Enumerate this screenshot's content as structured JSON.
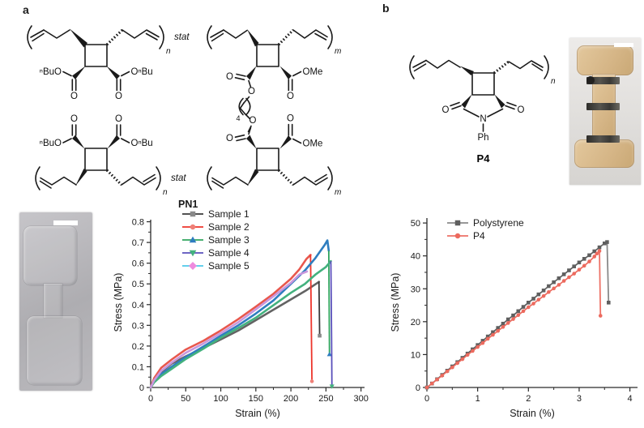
{
  "panels": {
    "a_label": "a",
    "b_label": "b"
  },
  "chemistry": {
    "labels": {
      "nbuo": "ⁿBuO",
      "onbu": "OⁿBu",
      "ome": "OMe",
      "oxygen": "O",
      "nitrogen": "N",
      "phenyl": "Ph",
      "stat": "stat",
      "sub_n": "n",
      "sub_m": "m",
      "linker_repeat": "4",
      "polymer_b_name": "P4"
    }
  },
  "photos": {
    "a": {
      "body_color": "#b4b3b7",
      "scale_bar_color": "#ffffff"
    },
    "b": {
      "specimen_color": "#d5b586",
      "marker_band_color": "#3a3935",
      "scale_bar_color": "#ffffff"
    }
  },
  "chart_data": [
    {
      "type": "line",
      "title": "PN1",
      "xlabel": "Strain (%)",
      "ylabel": "Stress (MPa)",
      "xlim": [
        0,
        305
      ],
      "ylim": [
        0,
        0.81
      ],
      "xticks": [
        "0",
        "50",
        "100",
        "150",
        "200",
        "250",
        "300"
      ],
      "yticks": [
        "0",
        "0.1",
        "0.2",
        "0.3",
        "0.4",
        "0.5",
        "0.6",
        "0.7",
        "0.8"
      ],
      "grid": false,
      "legend_position": "inside-top-left",
      "series": [
        {
          "name": "Sample 1",
          "color": "#636363",
          "line_color": "#3a3a3a",
          "marker": "square",
          "marker_color": "#8a8a8a",
          "curve": [
            [
              0,
              0
            ],
            [
              5,
              0.03
            ],
            [
              15,
              0.075
            ],
            [
              30,
              0.115
            ],
            [
              50,
              0.15
            ],
            [
              75,
              0.19
            ],
            [
              100,
              0.232
            ],
            [
              125,
              0.275
            ],
            [
              150,
              0.325
            ],
            [
              175,
              0.375
            ],
            [
              200,
              0.425
            ],
            [
              220,
              0.465
            ],
            [
              238,
              0.505
            ],
            [
              240,
              0.51
            ]
          ],
          "drop": [
            [
              241,
              0.25
            ]
          ]
        },
        {
          "name": "Sample 2",
          "color": "#e8574d",
          "line_color": "#ed352c",
          "marker": "circle",
          "marker_color": "#ef8077",
          "curve": [
            [
              0,
              0
            ],
            [
              5,
              0.045
            ],
            [
              15,
              0.095
            ],
            [
              30,
              0.135
            ],
            [
              50,
              0.183
            ],
            [
              75,
              0.225
            ],
            [
              100,
              0.275
            ],
            [
              125,
              0.33
            ],
            [
              150,
              0.39
            ],
            [
              175,
              0.452
            ],
            [
              200,
              0.525
            ],
            [
              212,
              0.57
            ],
            [
              222,
              0.62
            ],
            [
              228,
              0.64
            ]
          ],
          "drop": [
            [
              230,
              0.03
            ]
          ]
        },
        {
          "name": "Sample 3",
          "color": "#2e7dbf",
          "line_color": "#2fa45e",
          "marker": "triangle-up",
          "marker_color": "#2e7dbf",
          "curve": [
            [
              0,
              0
            ],
            [
              5,
              0.03
            ],
            [
              15,
              0.065
            ],
            [
              30,
              0.1
            ],
            [
              50,
              0.147
            ],
            [
              75,
              0.197
            ],
            [
              100,
              0.25
            ],
            [
              125,
              0.3
            ],
            [
              150,
              0.357
            ],
            [
              175,
              0.42
            ],
            [
              200,
              0.5
            ],
            [
              220,
              0.565
            ],
            [
              235,
              0.625
            ],
            [
              248,
              0.687
            ],
            [
              252,
              0.71
            ],
            [
              254,
              0.66
            ]
          ],
          "drop": [
            [
              255,
              0.16
            ]
          ]
        },
        {
          "name": "Sample 4",
          "color": "#43b17e",
          "line_color": "#5a50bb",
          "marker": "triangle-down",
          "marker_color": "#43b17e",
          "curve": [
            [
              0,
              0
            ],
            [
              5,
              0.025
            ],
            [
              15,
              0.055
            ],
            [
              30,
              0.09
            ],
            [
              50,
              0.137
            ],
            [
              75,
              0.187
            ],
            [
              100,
              0.24
            ],
            [
              125,
              0.287
            ],
            [
              150,
              0.337
            ],
            [
              175,
              0.397
            ],
            [
              200,
              0.457
            ],
            [
              220,
              0.5
            ],
            [
              235,
              0.545
            ],
            [
              250,
              0.582
            ],
            [
              257,
              0.61
            ]
          ],
          "drop": [
            [
              258,
              0.245
            ],
            [
              258.5,
              0.005
            ]
          ]
        },
        {
          "name": "Sample 5",
          "color": "#c897dd",
          "line_color": "#4ec9ea",
          "marker": "diamond",
          "marker_color": "#ee8ade",
          "curve": [
            [
              0,
              0
            ],
            [
              5,
              0.035
            ],
            [
              15,
              0.08
            ],
            [
              30,
              0.12
            ],
            [
              50,
              0.167
            ],
            [
              75,
              0.212
            ],
            [
              100,
              0.262
            ],
            [
              125,
              0.315
            ],
            [
              150,
              0.377
            ],
            [
              175,
              0.44
            ],
            [
              200,
              0.505
            ],
            [
              212,
              0.545
            ],
            [
              223,
              0.56
            ]
          ],
          "drop": []
        }
      ]
    },
    {
      "type": "line",
      "title": "",
      "xlabel": "Strain (%)",
      "ylabel": "Stress (MPa)",
      "xlim": [
        0,
        4.15
      ],
      "ylim": [
        0,
        51.5
      ],
      "xticks": [
        "0",
        "1",
        "2",
        "3",
        "4"
      ],
      "yticks": [
        "0",
        "10",
        "20",
        "30",
        "40",
        "50"
      ],
      "grid": false,
      "legend_position": "inside-top-left",
      "series": [
        {
          "name": "Polystyrene",
          "color": "#5f5f5f",
          "line_color": "#8a8a8a",
          "marker": "square",
          "marker_color": "#5f5f5f",
          "show_markers": true,
          "curve": [
            [
              0,
              0
            ],
            [
              0.1,
              1.2
            ],
            [
              0.2,
              2.5
            ],
            [
              0.3,
              3.8
            ],
            [
              0.4,
              5.1
            ],
            [
              0.5,
              6.4
            ],
            [
              0.6,
              7.7
            ],
            [
              0.7,
              9.0
            ],
            [
              0.8,
              10.3
            ],
            [
              0.9,
              11.6
            ],
            [
              1.0,
              12.9
            ],
            [
              1.1,
              14.2
            ],
            [
              1.2,
              15.5
            ],
            [
              1.3,
              16.8
            ],
            [
              1.4,
              18.1
            ],
            [
              1.5,
              19.4
            ],
            [
              1.6,
              20.7
            ],
            [
              1.7,
              21.9
            ],
            [
              1.8,
              23.2
            ],
            [
              1.9,
              24.5
            ],
            [
              2.0,
              25.8
            ],
            [
              2.1,
              27.0
            ],
            [
              2.2,
              28.3
            ],
            [
              2.3,
              29.5
            ],
            [
              2.4,
              30.8
            ],
            [
              2.5,
              32.0
            ],
            [
              2.6,
              33.2
            ],
            [
              2.7,
              34.4
            ],
            [
              2.8,
              35.6
            ],
            [
              2.9,
              36.8
            ],
            [
              3.0,
              38.0
            ],
            [
              3.1,
              39.1
            ],
            [
              3.2,
              40.2
            ],
            [
              3.3,
              41.4
            ],
            [
              3.4,
              42.6
            ],
            [
              3.5,
              43.8
            ],
            [
              3.55,
              44.2
            ]
          ],
          "drop": [
            [
              3.58,
              25.8
            ]
          ]
        },
        {
          "name": "P4",
          "color": "#ec6a5e",
          "line_color": "#ed7166",
          "marker": "circle",
          "marker_color": "#ec6a5e",
          "show_markers": true,
          "curve": [
            [
              0,
              0
            ],
            [
              0.1,
              1.2
            ],
            [
              0.2,
              2.4
            ],
            [
              0.3,
              3.6
            ],
            [
              0.4,
              4.9
            ],
            [
              0.5,
              6.1
            ],
            [
              0.6,
              7.4
            ],
            [
              0.7,
              8.6
            ],
            [
              0.8,
              9.9
            ],
            [
              0.9,
              11.1
            ],
            [
              1.0,
              12.3
            ],
            [
              1.1,
              13.5
            ],
            [
              1.2,
              14.8
            ],
            [
              1.3,
              16.0
            ],
            [
              1.4,
              17.2
            ],
            [
              1.5,
              18.4
            ],
            [
              1.6,
              19.6
            ],
            [
              1.7,
              20.8
            ],
            [
              1.8,
              22.0
            ],
            [
              1.9,
              23.2
            ],
            [
              2.0,
              24.4
            ],
            [
              2.1,
              25.5
            ],
            [
              2.2,
              26.7
            ],
            [
              2.3,
              27.8
            ],
            [
              2.4,
              29.0
            ],
            [
              2.5,
              30.1
            ],
            [
              2.6,
              31.2
            ],
            [
              2.7,
              32.4
            ],
            [
              2.8,
              33.5
            ],
            [
              2.9,
              34.6
            ],
            [
              3.0,
              35.8
            ],
            [
              3.1,
              37.0
            ],
            [
              3.2,
              38.3
            ],
            [
              3.3,
              39.8
            ],
            [
              3.35,
              40.7
            ],
            [
              3.4,
              41.5
            ]
          ],
          "drop": [
            [
              3.42,
              21.8
            ]
          ]
        }
      ]
    }
  ]
}
